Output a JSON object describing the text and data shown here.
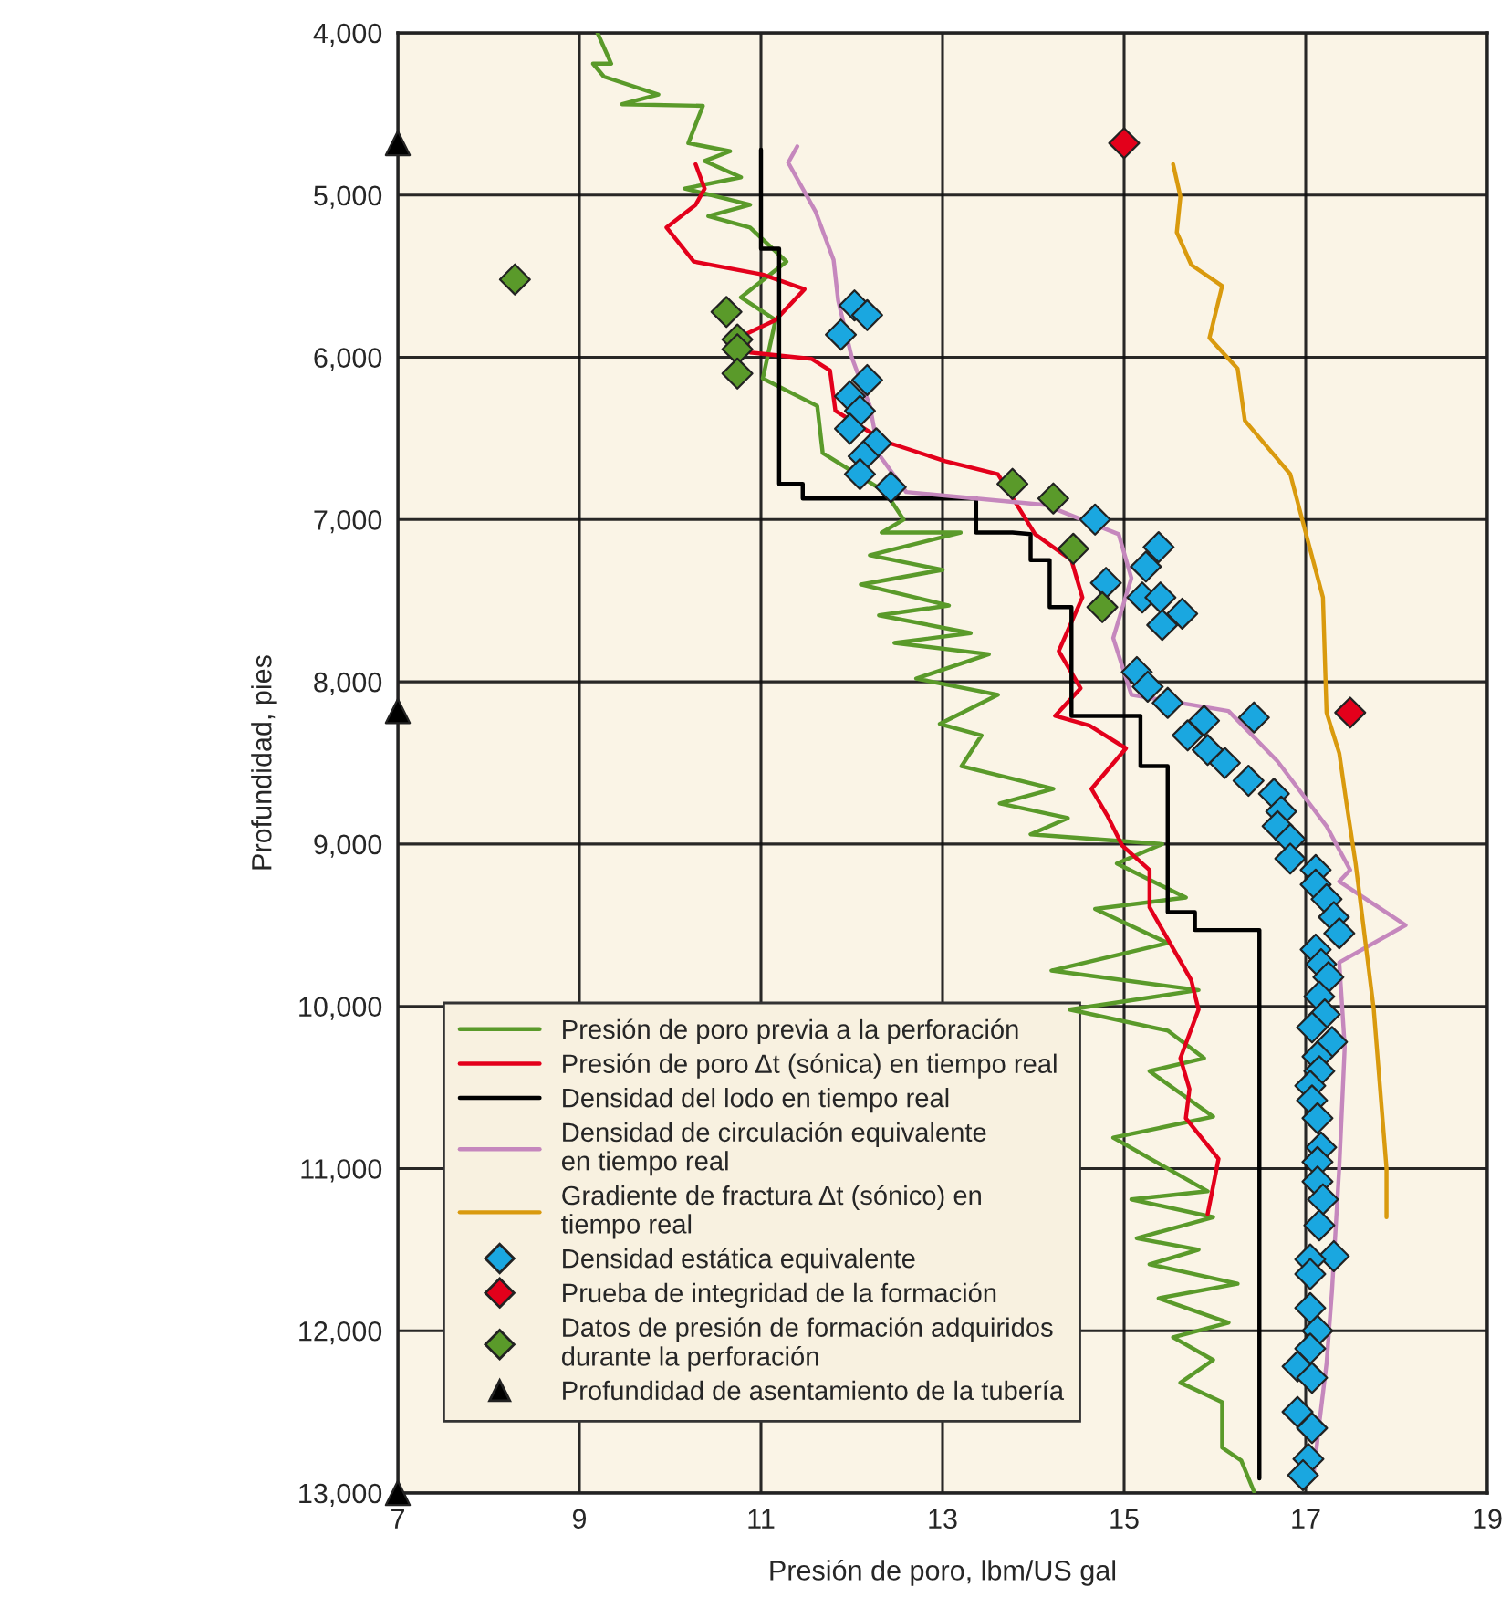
{
  "chart_data": {
    "type": "line",
    "xlabel": "Presión de poro, lbm/US gal",
    "ylabel": "Profundidad, pies",
    "xlim": [
      7,
      19
    ],
    "xticks": [
      7,
      9,
      11,
      13,
      15,
      17,
      19
    ],
    "ylim": [
      13000,
      4000
    ],
    "yticks": [
      {
        "value": 4000,
        "label": "4,000"
      },
      {
        "value": 5000,
        "label": "5,000"
      },
      {
        "value": 6000,
        "label": "6,000"
      },
      {
        "value": 7000,
        "label": "7,000"
      },
      {
        "value": 8000,
        "label": "8,000"
      },
      {
        "value": 9000,
        "label": "9,000"
      },
      {
        "value": 10000,
        "label": "10,000"
      },
      {
        "value": 11000,
        "label": "11,000"
      },
      {
        "value": 12000,
        "label": "12,000"
      },
      {
        "value": 13000,
        "label": "13,000"
      }
    ],
    "grid": true,
    "legend": "bottom left",
    "series": [
      {
        "name": "Presión de poro previa a la perforación",
        "color": "#5a9a2a",
        "line_style": "solid",
        "x": [
          9.2,
          9.35,
          9.15,
          9.27,
          9.87,
          9.47,
          10.36,
          10.2,
          10.66,
          10.38,
          10.78,
          10.16,
          10.88,
          10.42,
          10.88,
          11.28,
          10.78,
          11.16,
          11.02,
          11.62,
          11.68,
          12.37,
          12.57,
          12.33,
          13.2,
          12.2,
          13.0,
          12.1,
          13.07,
          12.3,
          13.31,
          12.47,
          13.51,
          12.71,
          13.61,
          12.97,
          13.43,
          13.21,
          14.22,
          13.63,
          14.38,
          13.97,
          15.42,
          14.92,
          15.68,
          14.68,
          15.48,
          14.2,
          15.82,
          14.4,
          15.48,
          15.88,
          15.28,
          15.98,
          14.88,
          15.92,
          15.08,
          15.98,
          15.14,
          15.82,
          15.28,
          16.25,
          15.38,
          16.15,
          15.54,
          15.98,
          15.62,
          16.08,
          16.08,
          16.29,
          16.43
        ],
        "values": [
          4000,
          4190,
          4190,
          4270,
          4380,
          4440,
          4450,
          4680,
          4730,
          4790,
          4890,
          4960,
          5060,
          5130,
          5200,
          5410,
          5630,
          5770,
          6130,
          6300,
          6590,
          6830,
          7000,
          7080,
          7080,
          7220,
          7310,
          7400,
          7530,
          7590,
          7700,
          7760,
          7830,
          7980,
          8080,
          8260,
          8330,
          8520,
          8660,
          8750,
          8840,
          8940,
          9000,
          9120,
          9330,
          9400,
          9610,
          9780,
          9900,
          10020,
          10150,
          10320,
          10400,
          10680,
          10810,
          11140,
          11190,
          11300,
          11430,
          11500,
          11590,
          11710,
          11800,
          11950,
          12040,
          12180,
          12320,
          12440,
          12720,
          12800,
          12990
        ]
      },
      {
        "name": "Presión de poro Δt (sónica) en tiempo real",
        "color": "#e3001b",
        "line_style": "solid",
        "x": [
          10.28,
          10.38,
          10.28,
          9.96,
          10.26,
          11.02,
          11.48,
          11.16,
          10.82,
          10.88,
          11.56,
          11.76,
          11.82,
          12.37,
          13.03,
          13.61,
          14.02,
          14.42,
          14.54,
          14.28,
          14.52,
          14.24,
          14.62,
          15.02,
          14.64,
          14.82,
          14.98,
          15.28,
          15.28,
          15.74,
          15.82,
          15.62,
          15.72,
          15.68,
          16.04,
          15.92
        ],
        "values": [
          4810,
          4960,
          5060,
          5200,
          5410,
          5490,
          5580,
          5770,
          5860,
          5970,
          6010,
          6080,
          6330,
          6520,
          6640,
          6720,
          7090,
          7250,
          7480,
          7810,
          8040,
          8210,
          8270,
          8410,
          8660,
          8830,
          9010,
          9160,
          9390,
          9840,
          10020,
          10320,
          10510,
          10690,
          10940,
          11280
        ]
      },
      {
        "name": "Densidad del lodo en tiempo real",
        "color": "#000000",
        "line_style": "solid",
        "x": [
          11.0,
          11.0,
          11.2,
          11.2,
          11.46,
          11.46,
          13.37,
          13.37,
          13.77,
          13.97,
          13.97,
          14.18,
          14.18,
          14.42,
          14.42,
          15.18,
          15.18,
          15.48,
          15.48,
          15.78,
          15.78,
          16.49,
          16.49
        ],
        "values": [
          4720,
          5330,
          5330,
          6780,
          6780,
          6870,
          6870,
          7080,
          7080,
          7090,
          7250,
          7250,
          7540,
          7540,
          8210,
          8210,
          8520,
          8520,
          9420,
          9420,
          9530,
          9530,
          12910
        ]
      },
      {
        "name": "Densidad de circulación equivalente\nen tiempo real",
        "color": "#c587bd",
        "line_style": "solid",
        "x": [
          11.4,
          11.3,
          11.6,
          11.8,
          11.85,
          12.0,
          12.2,
          12.3,
          12.6,
          14.13,
          14.94,
          15.08,
          14.88,
          15.08,
          16.15,
          16.69,
          17.23,
          17.49,
          17.37,
          18.1,
          17.37,
          17.43,
          17.37,
          17.29,
          17.23,
          17.15,
          17.09
        ],
        "values": [
          4700,
          4800,
          5100,
          5400,
          5650,
          6000,
          6300,
          6600,
          6830,
          6910,
          7090,
          7360,
          7730,
          8080,
          8180,
          8490,
          8890,
          9160,
          9230,
          9500,
          9730,
          10250,
          10990,
          11750,
          12200,
          12570,
          12870
        ]
      },
      {
        "name": "Gradiente de fractura Δt (sónico) en\ntiempo real",
        "color": "#d99a0e",
        "line_style": "solid",
        "x": [
          15.54,
          15.62,
          15.58,
          15.74,
          16.08,
          15.94,
          16.25,
          16.33,
          16.83,
          16.99,
          17.19,
          17.23,
          17.37,
          17.45,
          17.55,
          17.75,
          17.89,
          17.89
        ],
        "values": [
          4810,
          5010,
          5230,
          5430,
          5560,
          5880,
          6070,
          6390,
          6720,
          7060,
          7480,
          8190,
          8440,
          8750,
          9120,
          10020,
          11000,
          11300
        ]
      },
      {
        "name": "Densidad estática equivalente",
        "type": "scatter",
        "color": "#1aa7e0",
        "marker": "diamond",
        "x": [
          12.03,
          12.17,
          11.88,
          12.17,
          11.98,
          12.09,
          11.98,
          12.27,
          12.13,
          12.09,
          12.43,
          14.68,
          15.38,
          15.24,
          14.8,
          15.2,
          15.4,
          15.64,
          15.42,
          15.14,
          15.26,
          15.48,
          15.88,
          16.43,
          15.7,
          15.92,
          16.11,
          16.37,
          16.65,
          16.73,
          16.69,
          16.83,
          16.83,
          17.11,
          17.11,
          17.23,
          17.31,
          17.37,
          17.11,
          17.17,
          17.25,
          17.15,
          17.21,
          17.07,
          17.29,
          17.13,
          17.15,
          17.05,
          17.07,
          17.13,
          17.17,
          17.13,
          17.13,
          17.19,
          17.15,
          17.31,
          17.05,
          17.05,
          17.05,
          17.13,
          17.05,
          16.91,
          17.07,
          16.91,
          17.07,
          17.03,
          16.97
        ],
        "values": [
          5680,
          5740,
          5860,
          6140,
          6240,
          6330,
          6440,
          6530,
          6610,
          6720,
          6800,
          7000,
          7170,
          7290,
          7390,
          7480,
          7480,
          7580,
          7650,
          7940,
          8030,
          8130,
          8240,
          8220,
          8330,
          8420,
          8500,
          8610,
          8690,
          8800,
          8890,
          8970,
          9090,
          9160,
          9250,
          9340,
          9450,
          9550,
          9650,
          9740,
          9820,
          9940,
          10050,
          10130,
          10220,
          10310,
          10400,
          10490,
          10580,
          10690,
          10870,
          10960,
          11080,
          11190,
          11350,
          11540,
          11560,
          11650,
          11860,
          12000,
          12110,
          12220,
          12290,
          12500,
          12600,
          12790,
          12890
        ]
      },
      {
        "name": "Prueba de integridad de la formación",
        "type": "scatter",
        "color": "#e3001b",
        "marker": "diamond",
        "x": [
          15.0,
          17.49
        ],
        "values": [
          4680,
          8190
        ]
      },
      {
        "name": "Datos de presión de formación adquiridos\ndurante la perforación",
        "type": "scatter",
        "color": "#5a9a2a",
        "marker": "diamond",
        "x": [
          8.29,
          10.62,
          10.74,
          10.74,
          10.74,
          13.77,
          14.22,
          14.44,
          14.76
        ],
        "values": [
          5520,
          5720,
          5890,
          5950,
          6100,
          6780,
          6870,
          7180,
          7540
        ]
      },
      {
        "name": "Profundidad de asentamiento de la tubería",
        "type": "scatter",
        "color": "#000000",
        "marker": "triangle",
        "x": [
          7,
          7,
          7
        ],
        "values": [
          4680,
          8180,
          13000
        ]
      }
    ]
  }
}
